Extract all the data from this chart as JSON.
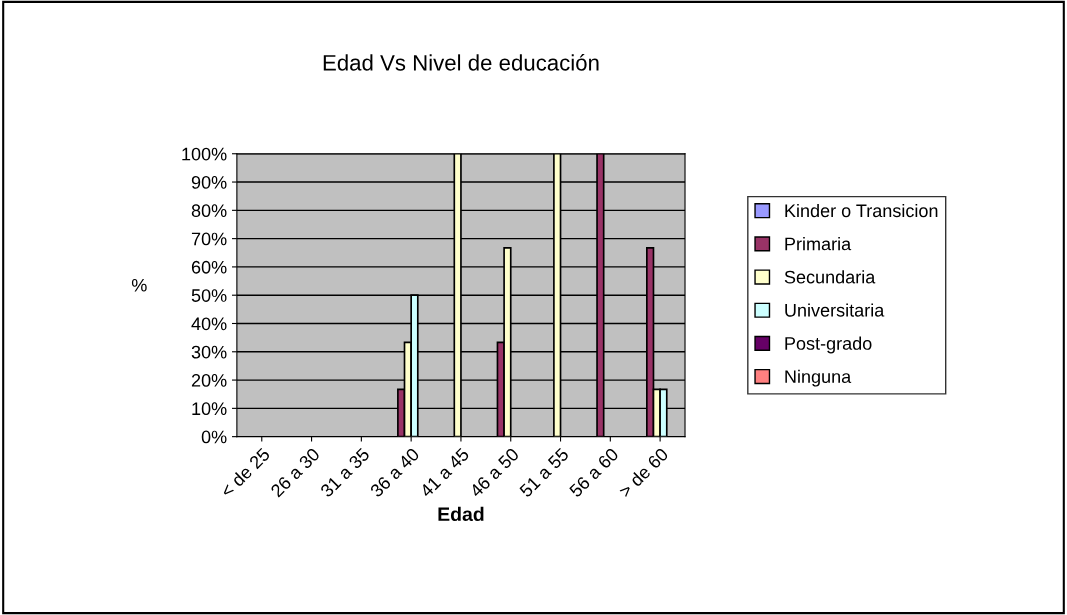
{
  "chart_data": {
    "type": "bar",
    "title": "Edad Vs Nivel de educación",
    "xlabel": "Edad",
    "ylabel": "%",
    "categories": [
      "< de 25",
      "26 a 30",
      "31 a 35",
      "36 a 40",
      "41 a 45",
      "46 a 50",
      "51 a 55",
      "56 a 60",
      "> de 60"
    ],
    "series": [
      {
        "name": "Kinder o Transicion",
        "color": "#9999ff",
        "values": [
          null,
          null,
          null,
          null,
          null,
          null,
          null,
          null,
          null
        ]
      },
      {
        "name": "Primaria",
        "color": "#993366",
        "values": [
          null,
          null,
          null,
          16.7,
          null,
          33.3,
          null,
          100,
          66.7
        ]
      },
      {
        "name": "Secundaria",
        "color": "#ffffcc",
        "values": [
          null,
          null,
          null,
          33.3,
          100,
          66.7,
          100,
          null,
          16.7
        ]
      },
      {
        "name": "Universitaria",
        "color": "#ccffff",
        "values": [
          null,
          null,
          null,
          50,
          null,
          null,
          null,
          null,
          16.7
        ]
      },
      {
        "name": "Post-grado",
        "color": "#660066",
        "values": [
          null,
          null,
          null,
          null,
          null,
          null,
          null,
          null,
          null
        ]
      },
      {
        "name": "Ninguna",
        "color": "#ff8080",
        "values": [
          null,
          null,
          null,
          null,
          null,
          null,
          null,
          null,
          null
        ]
      }
    ],
    "ylim": [
      0,
      100
    ],
    "yticks": [
      {
        "value": 0,
        "label": "0%"
      },
      {
        "value": 10,
        "label": "10%"
      },
      {
        "value": 20,
        "label": "20%"
      },
      {
        "value": 30,
        "label": "30%"
      },
      {
        "value": 40,
        "label": "40%"
      },
      {
        "value": 50,
        "label": "50%"
      },
      {
        "value": 60,
        "label": "60%"
      },
      {
        "value": 70,
        "label": "70%"
      },
      {
        "value": 80,
        "label": "80%"
      },
      {
        "value": 90,
        "label": "90%"
      },
      {
        "value": 100,
        "label": "100%"
      }
    ],
    "grid": "y",
    "legend": "right"
  }
}
